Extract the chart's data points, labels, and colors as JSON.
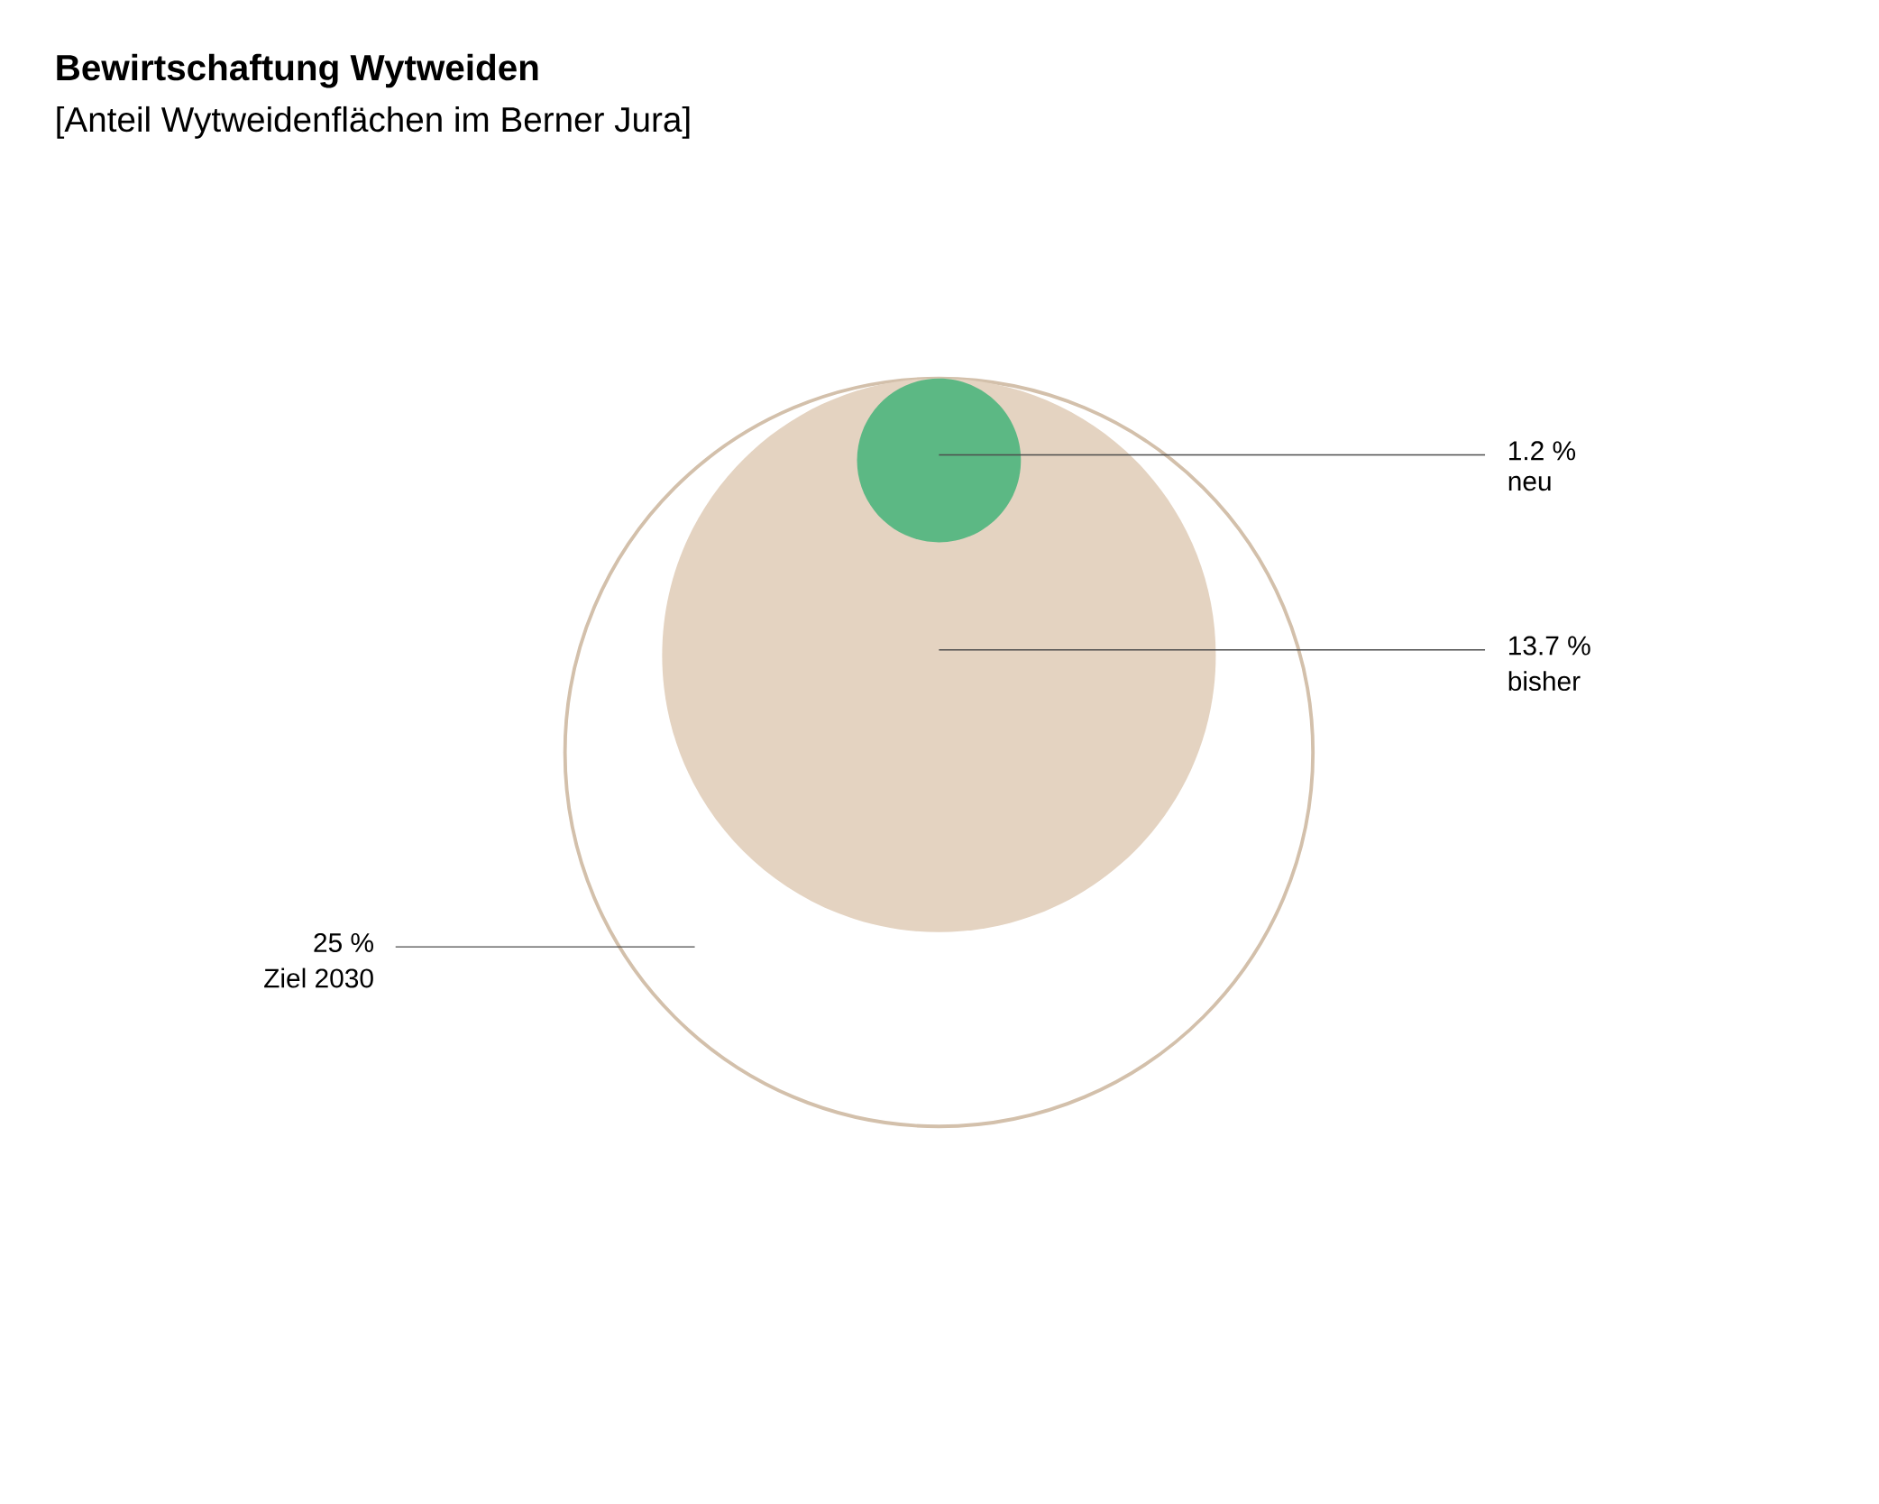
{
  "chart_data": {
    "type": "other",
    "title": "Bewirtschaftung Wytweiden",
    "subtitle": "[Anteil Wytweidenflächen im Berner Jura]",
    "categories": [
      "Ziel 2030",
      "bisher",
      "neu"
    ],
    "values": [
      25,
      13.7,
      1.2
    ],
    "value_labels": [
      "25 %",
      "13.7 %",
      "1.2 %"
    ],
    "colors": [
      "#d3c0ab",
      "#e4d3c1",
      "#5cb884"
    ]
  }
}
